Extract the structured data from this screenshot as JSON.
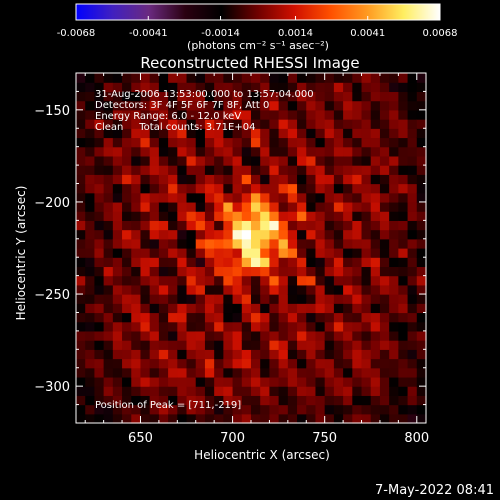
{
  "chart_data": {
    "type": "heatmap",
    "title": "Reconstructed RHESSI Image",
    "xlabel": "Heliocentric X (arcsec)",
    "ylabel": "Heliocentric Y (arcsec)",
    "xlim": [
      615,
      805
    ],
    "ylim": [
      -320,
      -130
    ],
    "x_ticks": [
      650,
      700,
      750,
      800
    ],
    "y_ticks": [
      -150,
      -200,
      -250,
      -300
    ],
    "colorbar": {
      "range": [
        -0.0068,
        0.0068
      ],
      "tick_values": [
        -0.0068,
        -0.0041,
        -0.0014,
        0.0014,
        0.0041,
        0.0068
      ],
      "tick_labels": [
        "-0.0068",
        "-0.0041",
        "-0.0014",
        "0.0014",
        "0.0041",
        "0.0068"
      ],
      "units": "(photons cm⁻² s⁻¹ asec⁻²)",
      "colormap": [
        "#0000ff",
        "#4020c0",
        "#6a2a80",
        "#2a0010",
        "#000000",
        "#700000",
        "#d01000",
        "#ff5000",
        "#ff9a20",
        "#ffee60",
        "#ffffff"
      ]
    },
    "annotations": [
      "31-Aug-2006 13:53:00.000 to 13:57:04.000",
      "Detectors: 3F 4F 5F 6F 7F 8F, Att 0",
      "Energy Range: 6.0 - 12.0 keV",
      "Clean     Total counts: 3.71E+04"
    ],
    "peak_label": "Position of Peak = [711,-219]",
    "peak": {
      "x": 711,
      "y": -219,
      "value": 0.0068
    },
    "source": {
      "x_center": 706,
      "y_center": -222,
      "sigma": 13
    },
    "timestamp": "7-May-2022 08:41"
  }
}
